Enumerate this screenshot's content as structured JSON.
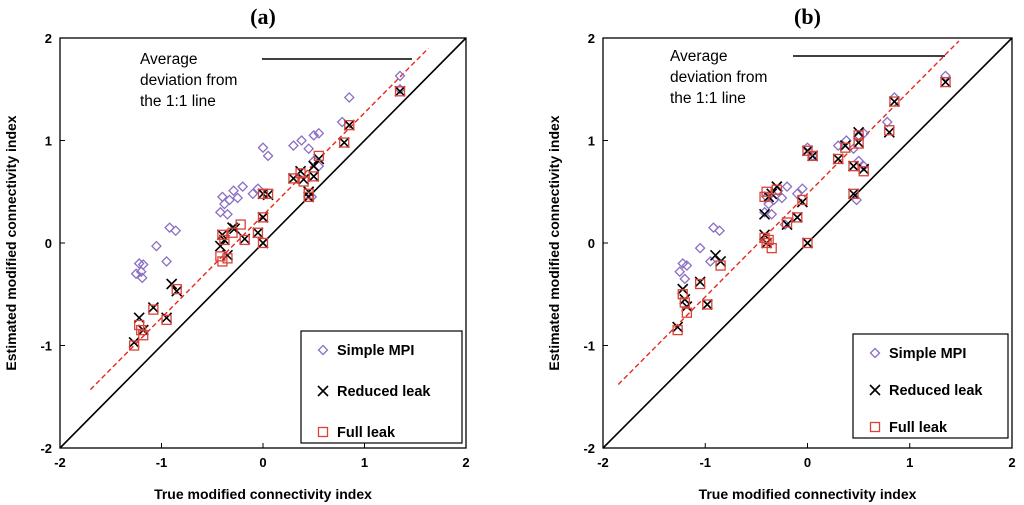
{
  "chart_data": [
    {
      "type": "scatter",
      "title": "(a)",
      "xlabel": "True modified connectivity index",
      "ylabel": "Estimated modified connectivity index",
      "xlim": [
        -2,
        2
      ],
      "ylim": [
        -2,
        2
      ],
      "xticks": [
        "-2",
        "-1",
        "0",
        "1",
        "2"
      ],
      "yticks": [
        "-2",
        "-1",
        "0",
        "1",
        "2"
      ],
      "grid": false,
      "legend_position": "bottom-right",
      "annotation": [
        "Average",
        "deviation from",
        "the 1:1 line"
      ],
      "reference_lines": [
        {
          "name": "1:1 line",
          "style": "solid",
          "color": "#000000",
          "x": [
            -2,
            2
          ],
          "y": [
            -2,
            2
          ]
        },
        {
          "name": "average deviation",
          "style": "dashed",
          "color": "#e8281e",
          "x": [
            -1.7,
            1.63
          ],
          "y": [
            -1.43,
            1.9
          ]
        }
      ],
      "series": [
        {
          "name": "Simple MPI",
          "marker": "diamond",
          "color": "#8a6fc4",
          "points": [
            [
              -1.25,
              -0.3
            ],
            [
              -1.22,
              -0.2
            ],
            [
              -1.2,
              -0.28
            ],
            [
              -1.18,
              -0.21
            ],
            [
              -1.19,
              -0.34
            ],
            [
              -1.05,
              -0.03
            ],
            [
              -0.92,
              0.15
            ],
            [
              -0.86,
              0.12
            ],
            [
              -0.95,
              -0.18
            ],
            [
              -0.4,
              0.45
            ],
            [
              -0.38,
              0.38
            ],
            [
              -0.42,
              0.3
            ],
            [
              -0.35,
              0.28
            ],
            [
              -0.33,
              0.42
            ],
            [
              -0.29,
              0.51
            ],
            [
              -0.2,
              0.55
            ],
            [
              -0.25,
              0.44
            ],
            [
              -0.1,
              0.48
            ],
            [
              -0.05,
              0.53
            ],
            [
              0.0,
              0.93
            ],
            [
              0.05,
              0.85
            ],
            [
              0.3,
              0.95
            ],
            [
              0.38,
              1.0
            ],
            [
              0.45,
              0.92
            ],
            [
              0.5,
              1.05
            ],
            [
              0.55,
              1.07
            ],
            [
              0.5,
              0.8
            ],
            [
              0.55,
              0.75
            ],
            [
              0.78,
              1.18
            ],
            [
              0.85,
              1.42
            ],
            [
              1.35,
              1.63
            ],
            [
              1.35,
              1.5
            ],
            [
              0.48,
              0.45
            ]
          ]
        },
        {
          "name": "Reduced leak",
          "marker": "x",
          "color": "#000000",
          "points": [
            [
              -1.27,
              -0.97
            ],
            [
              -1.22,
              -0.73
            ],
            [
              -1.18,
              -0.85
            ],
            [
              -1.08,
              -0.63
            ],
            [
              -0.95,
              -0.73
            ],
            [
              -0.9,
              -0.4
            ],
            [
              -0.85,
              -0.47
            ],
            [
              -0.42,
              -0.03
            ],
            [
              -0.38,
              0.03
            ],
            [
              -0.4,
              0.08
            ],
            [
              -0.35,
              -0.12
            ],
            [
              -0.28,
              0.14
            ],
            [
              -0.18,
              0.04
            ],
            [
              -0.05,
              0.1
            ],
            [
              0.0,
              0.48
            ],
            [
              0.05,
              0.47
            ],
            [
              0.0,
              0.25
            ],
            [
              0.0,
              0.0
            ],
            [
              0.3,
              0.63
            ],
            [
              0.37,
              0.7
            ],
            [
              0.4,
              0.62
            ],
            [
              0.45,
              0.5
            ],
            [
              0.5,
              0.65
            ],
            [
              0.55,
              0.82
            ],
            [
              0.5,
              0.75
            ],
            [
              0.8,
              0.98
            ],
            [
              0.85,
              1.15
            ],
            [
              1.35,
              1.48
            ],
            [
              0.45,
              0.45
            ],
            [
              -0.3,
              0.15
            ]
          ]
        },
        {
          "name": "Full leak",
          "marker": "square",
          "color": "#d8433a",
          "points": [
            [
              -1.27,
              -1.0
            ],
            [
              -1.22,
              -0.8
            ],
            [
              -1.18,
              -0.9
            ],
            [
              -1.2,
              -0.85
            ],
            [
              -1.08,
              -0.65
            ],
            [
              -0.95,
              -0.75
            ],
            [
              -0.85,
              -0.45
            ],
            [
              -0.42,
              -0.13
            ],
            [
              -0.4,
              -0.18
            ],
            [
              -0.38,
              0.03
            ],
            [
              -0.4,
              0.08
            ],
            [
              -0.35,
              -0.15
            ],
            [
              -0.3,
              0.1
            ],
            [
              -0.22,
              0.18
            ],
            [
              -0.18,
              0.03
            ],
            [
              -0.05,
              0.1
            ],
            [
              0.0,
              0.48
            ],
            [
              0.05,
              0.48
            ],
            [
              0.0,
              0.25
            ],
            [
              0.0,
              0.0
            ],
            [
              0.3,
              0.63
            ],
            [
              0.37,
              0.68
            ],
            [
              0.4,
              0.6
            ],
            [
              0.45,
              0.45
            ],
            [
              0.5,
              0.65
            ],
            [
              0.55,
              0.85
            ],
            [
              0.8,
              0.98
            ],
            [
              0.85,
              1.15
            ],
            [
              1.35,
              1.48
            ],
            [
              0.45,
              0.48
            ]
          ]
        }
      ]
    },
    {
      "type": "scatter",
      "title": "(b)",
      "xlabel": "True modified connectivity index",
      "ylabel": "Estimated modified connectivity index",
      "xlim": [
        -2,
        2
      ],
      "ylim": [
        -2,
        2
      ],
      "xticks": [
        "-2",
        "-1",
        "0",
        "1",
        "2"
      ],
      "yticks": [
        "-2",
        "-1",
        "0",
        "1",
        "2"
      ],
      "grid": false,
      "legend_position": "bottom-right",
      "annotation": [
        "Average",
        "deviation from",
        "the 1:1 line"
      ],
      "reference_lines": [
        {
          "name": "1:1 line",
          "style": "solid",
          "color": "#000000",
          "x": [
            -2,
            2
          ],
          "y": [
            -2,
            2
          ]
        },
        {
          "name": "average deviation",
          "style": "dashed",
          "color": "#e8281e",
          "x": [
            -1.85,
            1.48
          ],
          "y": [
            -1.38,
            1.97
          ]
        }
      ],
      "series": [
        {
          "name": "Simple MPI",
          "marker": "diamond",
          "color": "#8a6fc4",
          "points": [
            [
              -1.25,
              -0.28
            ],
            [
              -1.22,
              -0.2
            ],
            [
              -1.18,
              -0.22
            ],
            [
              -1.2,
              -0.35
            ],
            [
              -1.05,
              -0.05
            ],
            [
              -0.92,
              0.15
            ],
            [
              -0.86,
              0.12
            ],
            [
              -0.95,
              -0.18
            ],
            [
              -0.4,
              0.45
            ],
            [
              -0.38,
              0.38
            ],
            [
              -0.42,
              0.3
            ],
            [
              -0.35,
              0.28
            ],
            [
              -0.33,
              0.42
            ],
            [
              -0.29,
              0.51
            ],
            [
              -0.2,
              0.55
            ],
            [
              -0.25,
              0.44
            ],
            [
              -0.1,
              0.48
            ],
            [
              -0.05,
              0.53
            ],
            [
              0.0,
              0.93
            ],
            [
              0.05,
              0.85
            ],
            [
              0.3,
              0.95
            ],
            [
              0.38,
              1.0
            ],
            [
              0.45,
              0.92
            ],
            [
              0.5,
              1.05
            ],
            [
              0.55,
              1.07
            ],
            [
              0.5,
              0.8
            ],
            [
              0.55,
              0.75
            ],
            [
              0.78,
              1.18
            ],
            [
              0.85,
              1.42
            ],
            [
              1.35,
              1.63
            ],
            [
              0.48,
              0.42
            ],
            [
              -0.22,
              0.18
            ]
          ]
        },
        {
          "name": "Reduced leak",
          "marker": "x",
          "color": "#000000",
          "points": [
            [
              -1.27,
              -0.82
            ],
            [
              -1.22,
              -0.45
            ],
            [
              -1.2,
              -0.55
            ],
            [
              -1.18,
              -0.62
            ],
            [
              -1.05,
              -0.38
            ],
            [
              -0.98,
              -0.6
            ],
            [
              -0.9,
              -0.12
            ],
            [
              -0.85,
              -0.18
            ],
            [
              -0.42,
              0.28
            ],
            [
              -0.4,
              0.0
            ],
            [
              -0.38,
              0.45
            ],
            [
              -0.35,
              0.48
            ],
            [
              -0.3,
              0.55
            ],
            [
              -0.2,
              0.18
            ],
            [
              -0.1,
              0.25
            ],
            [
              -0.05,
              0.4
            ],
            [
              0.0,
              0.9
            ],
            [
              0.05,
              0.85
            ],
            [
              0.3,
              0.82
            ],
            [
              0.37,
              0.95
            ],
            [
              0.45,
              0.75
            ],
            [
              0.5,
              1.08
            ],
            [
              0.5,
              0.98
            ],
            [
              0.55,
              0.72
            ],
            [
              0.8,
              1.08
            ],
            [
              0.85,
              1.38
            ],
            [
              1.35,
              1.57
            ],
            [
              0.45,
              0.48
            ],
            [
              0.0,
              0.0
            ],
            [
              -0.42,
              0.08
            ]
          ]
        },
        {
          "name": "Full leak",
          "marker": "square",
          "color": "#d8433a",
          "points": [
            [
              -1.27,
              -0.85
            ],
            [
              -1.22,
              -0.5
            ],
            [
              -1.2,
              -0.58
            ],
            [
              -1.18,
              -0.68
            ],
            [
              -1.05,
              -0.4
            ],
            [
              -0.98,
              -0.6
            ],
            [
              -0.85,
              -0.22
            ],
            [
              -0.42,
              0.45
            ],
            [
              -0.4,
              0.0
            ],
            [
              -0.38,
              0.03
            ],
            [
              -0.35,
              -0.05
            ],
            [
              -0.42,
              0.05
            ],
            [
              -0.3,
              0.52
            ],
            [
              -0.2,
              0.2
            ],
            [
              -0.1,
              0.25
            ],
            [
              -0.05,
              0.42
            ],
            [
              0.0,
              0.9
            ],
            [
              0.05,
              0.85
            ],
            [
              0.3,
              0.82
            ],
            [
              0.37,
              0.93
            ],
            [
              0.45,
              0.75
            ],
            [
              0.5,
              1.05
            ],
            [
              0.5,
              0.97
            ],
            [
              0.55,
              0.7
            ],
            [
              0.8,
              1.1
            ],
            [
              0.85,
              1.38
            ],
            [
              1.35,
              1.57
            ],
            [
              0.45,
              0.48
            ],
            [
              0.0,
              0.0
            ],
            [
              -0.4,
              0.5
            ]
          ]
        }
      ]
    }
  ]
}
